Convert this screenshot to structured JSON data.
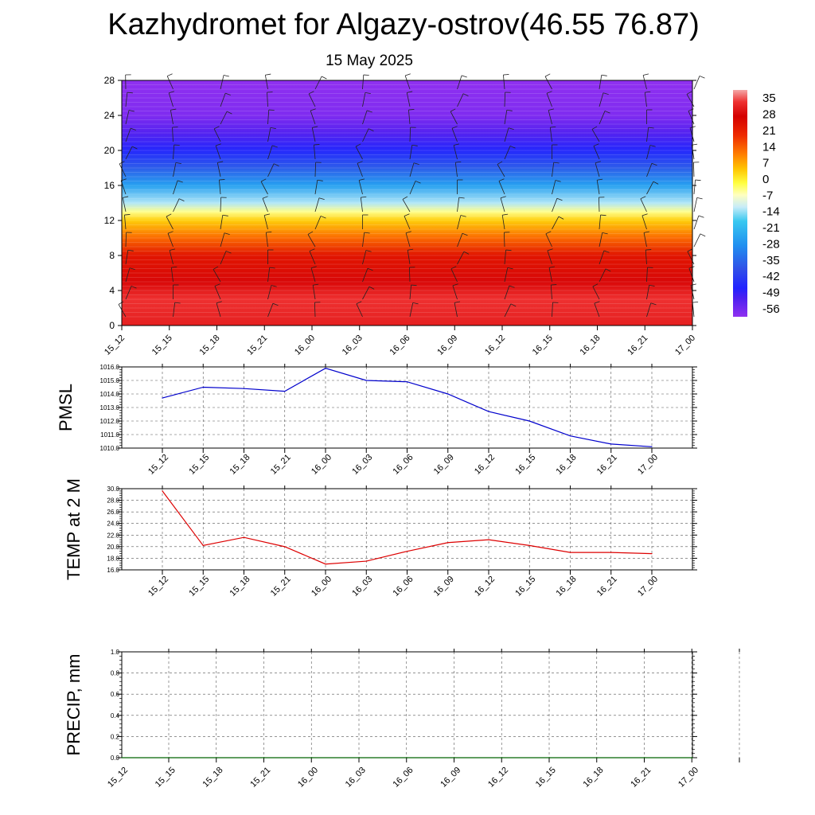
{
  "page": {
    "title": "Kazhydromet for Algazy-ostrov(46.55 76.87)",
    "subtitle": "15 May 2025"
  },
  "chart_data": [
    {
      "id": "profile",
      "type": "heatmap",
      "title": "",
      "x_ticks": [
        "15_12",
        "15_15",
        "15_18",
        "15_21",
        "16_00",
        "16_03",
        "16_06",
        "16_09",
        "16_12",
        "16_15",
        "16_18",
        "16_21",
        "17_00"
      ],
      "y_ticks": [
        0,
        4,
        8,
        12,
        16,
        20,
        24,
        28
      ],
      "ylim": [
        0,
        28
      ],
      "colorbar_labels": [
        35,
        28,
        21,
        14,
        7,
        0,
        -7,
        -14,
        -21,
        -28,
        -35,
        -42,
        -49,
        -56
      ],
      "color_scale": [
        {
          "value": 35,
          "color": "#f4a8a8"
        },
        {
          "value": 30,
          "color": "#ee3030"
        },
        {
          "value": 24,
          "color": "#d40000"
        },
        {
          "value": 16,
          "color": "#ee2a00"
        },
        {
          "value": 8,
          "color": "#ff7f00"
        },
        {
          "value": 2,
          "color": "#ffc400"
        },
        {
          "value": -4,
          "color": "#ffff40"
        },
        {
          "value": -9,
          "color": "#ffffc0"
        },
        {
          "value": -14,
          "color": "#c8ecf8"
        },
        {
          "value": -20,
          "color": "#38c8f0"
        },
        {
          "value": -30,
          "color": "#2090f0"
        },
        {
          "value": -40,
          "color": "#3050e8"
        },
        {
          "value": -48,
          "color": "#2222ff"
        },
        {
          "value": -52,
          "color": "#4b20f0"
        },
        {
          "value": -60,
          "color": "#9030f0"
        }
      ],
      "level_temperature": [
        {
          "level": 0,
          "value": 28
        },
        {
          "level": 3,
          "value": 30
        },
        {
          "level": 5,
          "value": 25
        },
        {
          "level": 8,
          "value": 20
        },
        {
          "level": 10,
          "value": 10
        },
        {
          "level": 12,
          "value": 1
        },
        {
          "level": 13,
          "value": -7
        },
        {
          "level": 14,
          "value": -15
        },
        {
          "level": 16,
          "value": -27
        },
        {
          "level": 18,
          "value": -38
        },
        {
          "level": 20,
          "value": -47
        },
        {
          "level": 22,
          "value": -53
        },
        {
          "level": 24,
          "value": -58
        },
        {
          "level": 28,
          "value": -60
        }
      ]
    },
    {
      "id": "pmsl",
      "type": "line",
      "ylabel": "PMSL",
      "x": [
        "15_12",
        "15_15",
        "15_18",
        "15_21",
        "16_00",
        "16_03",
        "16_06",
        "16_09",
        "16_12",
        "16_15",
        "16_18",
        "16_21",
        "17_00"
      ],
      "values": [
        1013.7,
        1014.5,
        1014.4,
        1014.2,
        1015.9,
        1015.0,
        1014.9,
        1014.0,
        1012.7,
        1012.0,
        1010.9,
        1010.3,
        1010.1
      ],
      "ylim": [
        1010.0,
        1016.0
      ],
      "y_ticks": [
        "1010.0",
        "1011.0",
        "1012.0",
        "1013.0",
        "1014.0",
        "1015.0",
        "1016.0"
      ],
      "color": "#0000cc",
      "grid": true
    },
    {
      "id": "temp2m",
      "type": "line",
      "ylabel": "TEMP at 2 M",
      "x": [
        "15_12",
        "15_15",
        "15_18",
        "15_21",
        "16_00",
        "16_03",
        "16_06",
        "16_09",
        "16_12",
        "16_15",
        "16_18",
        "16_21",
        "17_00"
      ],
      "values": [
        29.6,
        20.2,
        21.6,
        20.0,
        17.0,
        17.5,
        19.2,
        20.7,
        21.2,
        20.2,
        19.0,
        19.0,
        18.8
      ],
      "ylim": [
        16.0,
        30.0
      ],
      "y_ticks": [
        "16.0",
        "18.0",
        "20.0",
        "22.0",
        "24.0",
        "26.0",
        "28.0",
        "30.0"
      ],
      "color": "#dd0000",
      "grid": true
    },
    {
      "id": "precip",
      "type": "line",
      "ylabel": "PRECIP, mm",
      "x": [
        "15_12",
        "15_15",
        "15_18",
        "15_21",
        "16_00",
        "16_03",
        "16_06",
        "16_09",
        "16_12",
        "16_15",
        "16_18",
        "16_21",
        "17_00"
      ],
      "values": [
        0,
        0,
        0,
        0,
        0,
        0,
        0,
        0,
        0,
        0,
        0,
        0,
        0
      ],
      "ylim": [
        0.0,
        1.0
      ],
      "y_ticks": [
        "0.0",
        "0.2",
        "0.4",
        "0.6",
        "0.8",
        "1.0"
      ],
      "color": "#006400",
      "grid": true
    }
  ]
}
